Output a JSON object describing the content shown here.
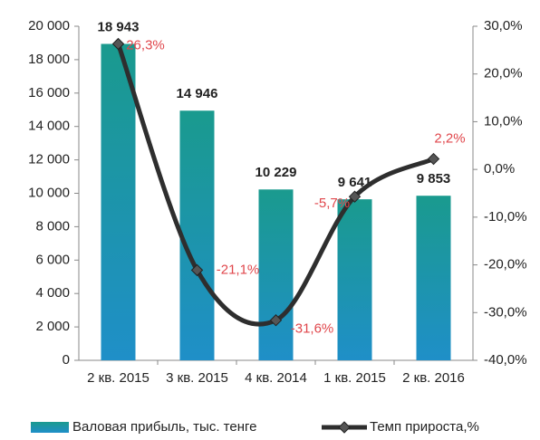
{
  "chart_data": {
    "type": "bar",
    "categories": [
      "2 кв. 2015",
      "3 кв. 2015",
      "4 кв. 2014",
      "1 кв. 2015",
      "2 кв. 2016"
    ],
    "series": [
      {
        "name": "Валовая прибыль, тыс. тенге",
        "color": "#1f8fb8",
        "type": "bar",
        "values": [
          18943,
          14946,
          10229,
          9641,
          9853
        ],
        "value_labels": [
          "18 943",
          "14 946",
          "10 229",
          "9 641",
          "9 853"
        ]
      },
      {
        "name": "Темп прироста,%",
        "color": "#2e2e2e",
        "type": "line",
        "axis": "y2",
        "values": [
          26.3,
          -21.1,
          -31.6,
          -5.7,
          2.2
        ],
        "value_labels": [
          "26,3%",
          "-21,1%",
          "-31,6%",
          "-5,7%",
          "2,2%"
        ]
      }
    ],
    "ylim": [
      0,
      20000
    ],
    "yticks": [
      0,
      {
        "value": 2000,
        "label": "2 000"
      },
      {
        "value": 4000,
        "label": "4 000"
      },
      {
        "value": 6000,
        "label": "6 000"
      },
      {
        "value": 8000,
        "label": "8 000"
      },
      {
        "value": 10000,
        "label": "10 000"
      },
      {
        "value": 12000,
        "label": "12 000"
      },
      {
        "value": 14000,
        "label": "14 000"
      },
      {
        "value": 16000,
        "label": "16 000"
      },
      {
        "value": 18000,
        "label": "18 000"
      },
      {
        "value": 20000,
        "label": "20 000"
      }
    ],
    "y2lim": [
      -40,
      30
    ],
    "y2ticks": [
      {
        "value": -40,
        "label": "-40,0%"
      },
      {
        "value": -30,
        "label": "-30,0%"
      },
      {
        "value": -20,
        "label": "-20,0%"
      },
      {
        "value": -10,
        "label": "-10,0%"
      },
      {
        "value": 0,
        "label": "0,0%"
      },
      {
        "value": 10,
        "label": "10,0%"
      },
      {
        "value": 20,
        "label": "20,0%"
      },
      {
        "value": 30,
        "label": "30,0%"
      }
    ],
    "legend": "bottom"
  }
}
